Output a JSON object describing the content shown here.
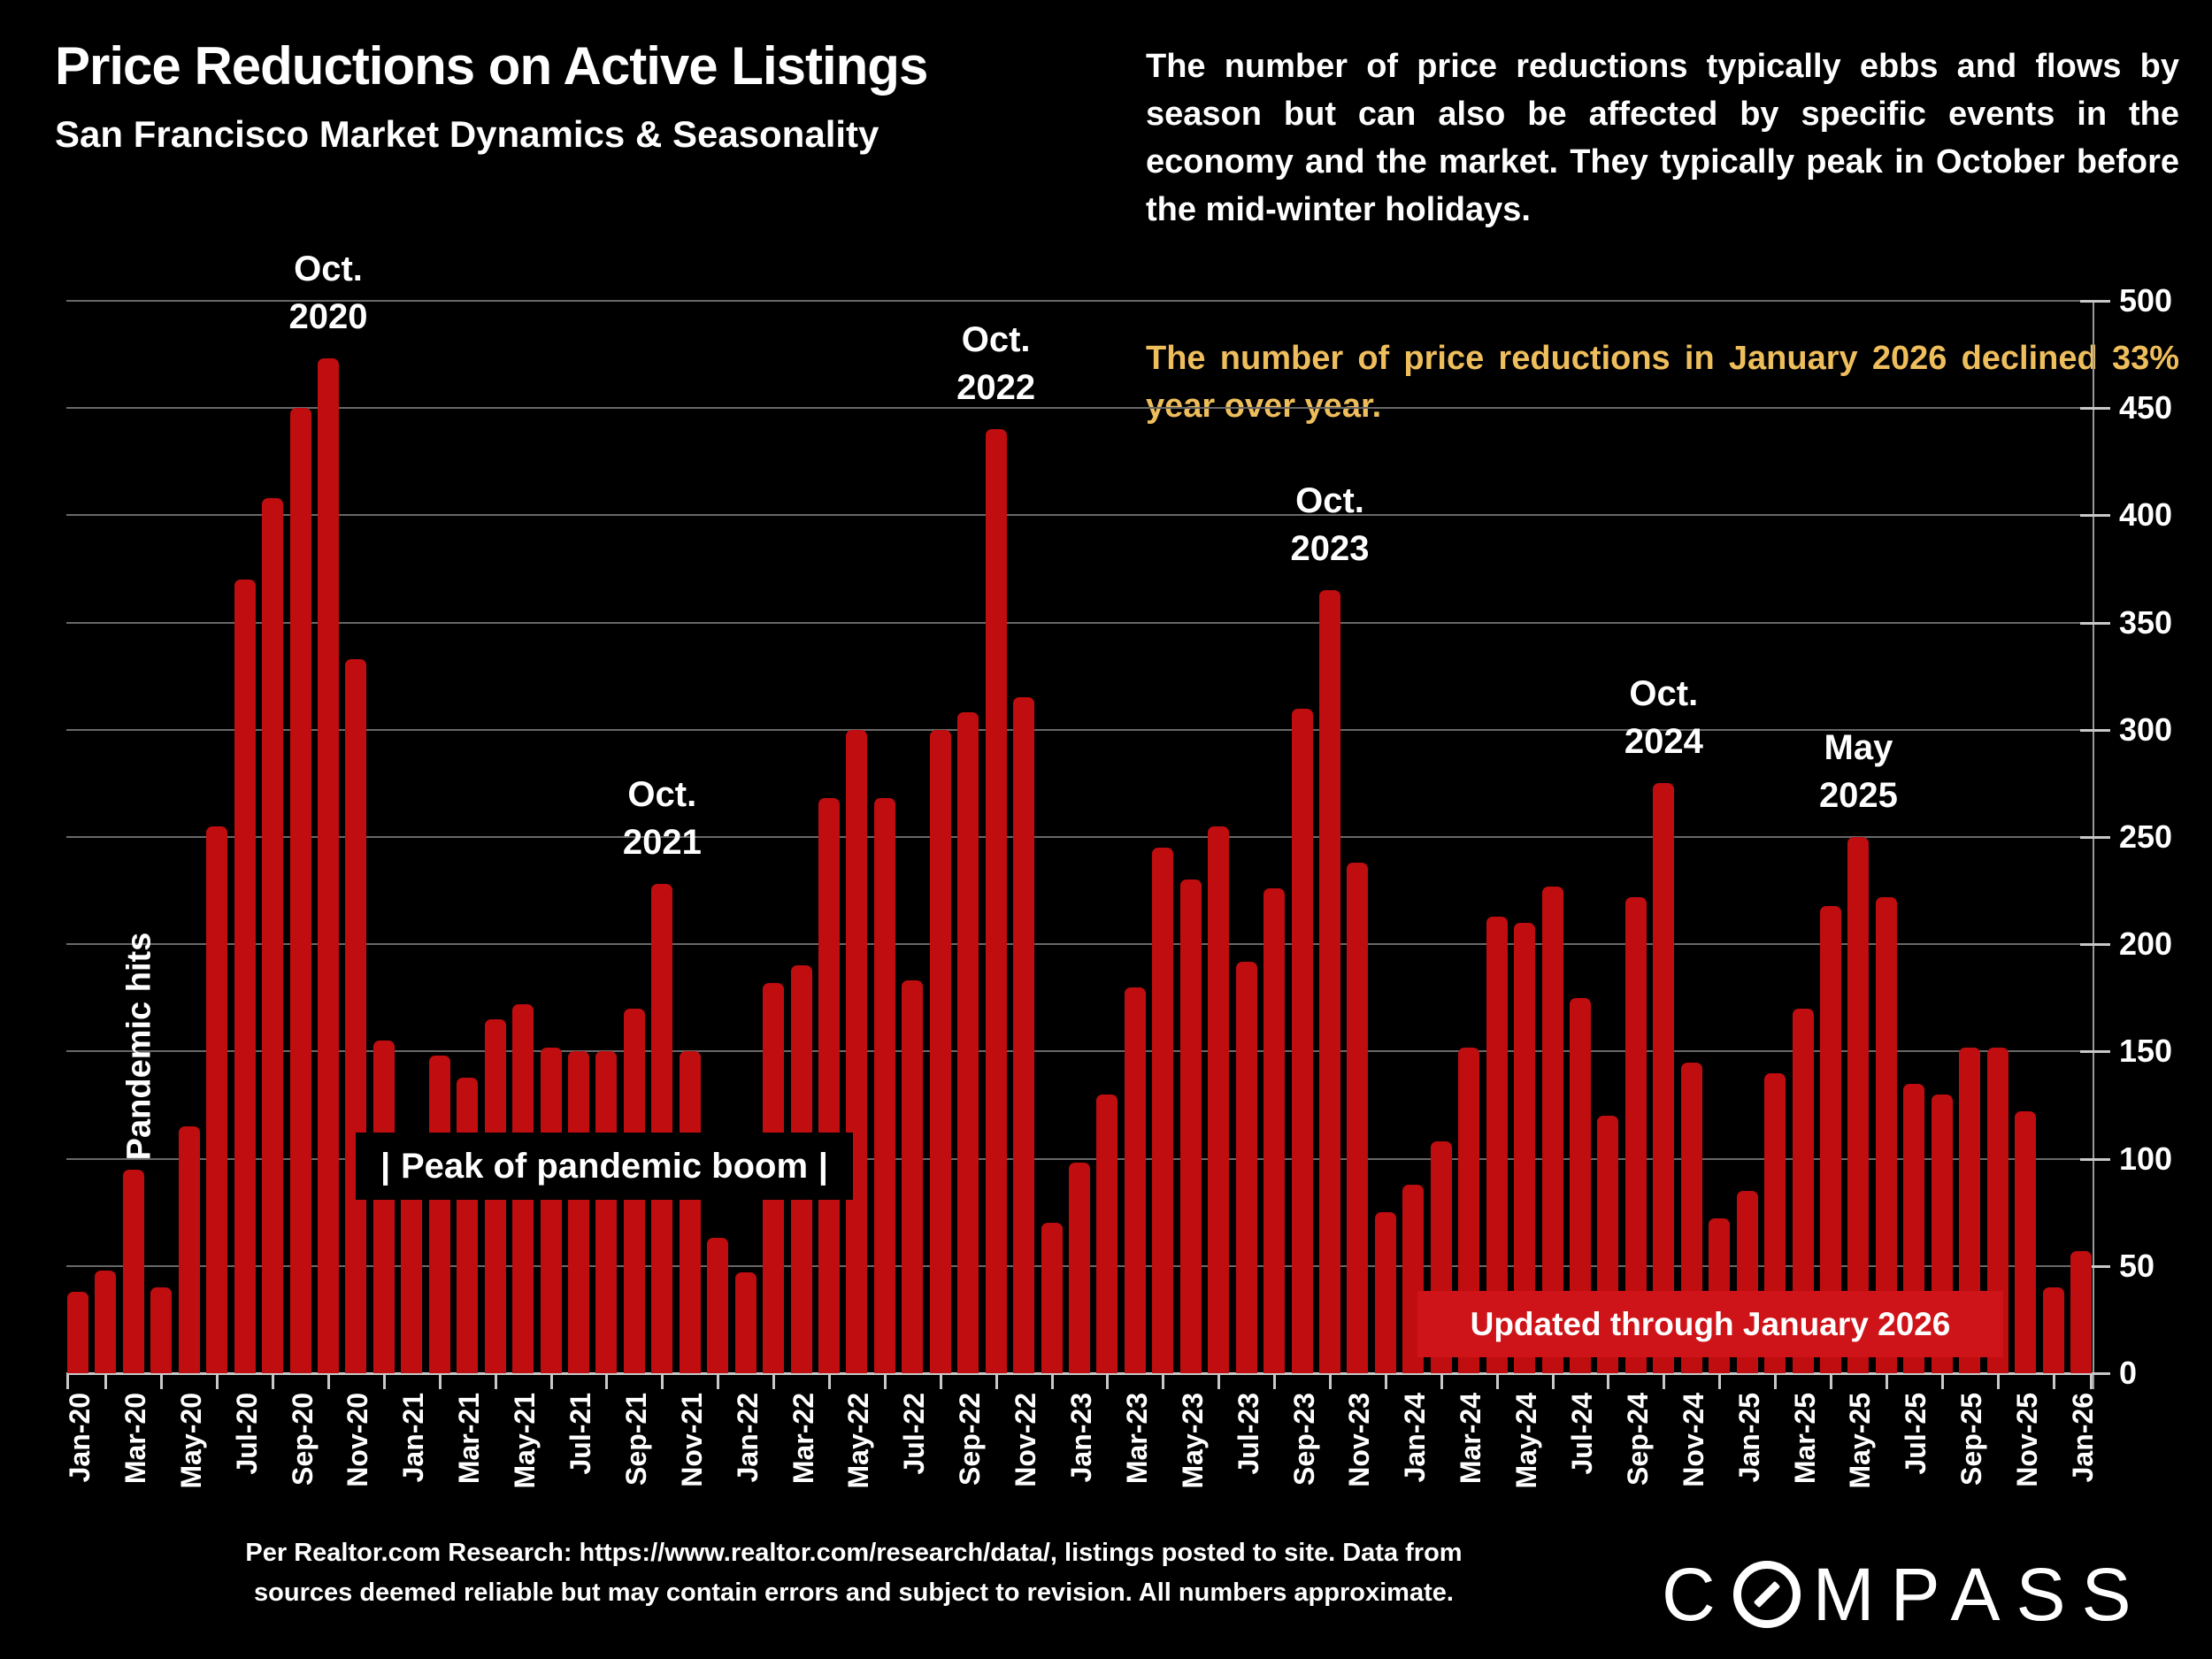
{
  "header": {
    "title": "Price Reductions on Active Listings",
    "subtitle": "San Francisco Market Dynamics & Seasonality"
  },
  "commentary": {
    "paragraph1": "The number of price reductions typically ebbs and flows by season but can also be affected by specific events in the economy and the market. They typically peak in October before the mid-winter holidays.",
    "paragraph2": "The number of price reductions in January 2026 declined 33% year over year.",
    "paragraph2_color": "#EFBE5C"
  },
  "overlays": {
    "pandemic_label": "Pandemic hits",
    "peak_box": {
      "left_pipe": "|",
      "text": "Peak of pandemic boom",
      "right_pipe": "|"
    },
    "updated_banner": "Updated through January 2026",
    "banner_color": "#CE1419"
  },
  "footer": {
    "source_line1": "Per Realtor.com Research:  https://www.realtor.com/research/data/, listings posted to site. Data from",
    "source_line2": "sources deemed reliable but may contain errors and subject to revision. All numbers approximate.",
    "logo_text_left": "C",
    "logo_text_right": "MPASS"
  },
  "chart_data": {
    "type": "bar",
    "title": "Price Reductions on Active Listings — San Francisco",
    "xlabel": "",
    "ylabel": "",
    "ylim": [
      0,
      500
    ],
    "ytick_step": 50,
    "grid": true,
    "legend": false,
    "bar_color": "#C00D10",
    "grid_color": "#686868",
    "axis_color": "#C8C8C8",
    "categories": [
      "Jan-20",
      "Feb-20",
      "Mar-20",
      "Apr-20",
      "May-20",
      "Jun-20",
      "Jul-20",
      "Aug-20",
      "Sep-20",
      "Oct-20",
      "Nov-20",
      "Dec-20",
      "Jan-21",
      "Feb-21",
      "Mar-21",
      "Apr-21",
      "May-21",
      "Jun-21",
      "Jul-21",
      "Aug-21",
      "Sep-21",
      "Oct-21",
      "Nov-21",
      "Dec-21",
      "Jan-22",
      "Feb-22",
      "Mar-22",
      "Apr-22",
      "May-22",
      "Jun-22",
      "Jul-22",
      "Aug-22",
      "Sep-22",
      "Oct-22",
      "Nov-22",
      "Dec-22",
      "Jan-23",
      "Feb-23",
      "Mar-23",
      "Apr-23",
      "May-23",
      "Jun-23",
      "Jul-23",
      "Aug-23",
      "Sep-23",
      "Oct-23",
      "Nov-23",
      "Dec-23",
      "Jan-24",
      "Feb-24",
      "Mar-24",
      "Apr-24",
      "May-24",
      "Jun-24",
      "Jul-24",
      "Aug-24",
      "Sep-24",
      "Oct-24",
      "Nov-24",
      "Dec-24",
      "Jan-25",
      "Feb-25",
      "Mar-25",
      "Apr-25",
      "May-25",
      "Jun-25",
      "Jul-25",
      "Aug-25",
      "Sep-25",
      "Oct-25",
      "Nov-25",
      "Dec-25",
      "Jan-26"
    ],
    "values": [
      38,
      48,
      95,
      40,
      115,
      255,
      370,
      408,
      450,
      473,
      333,
      155,
      112,
      148,
      138,
      165,
      172,
      152,
      150,
      150,
      170,
      228,
      150,
      63,
      47,
      182,
      190,
      268,
      300,
      268,
      183,
      300,
      308,
      440,
      315,
      70,
      98,
      130,
      180,
      245,
      230,
      255,
      192,
      226,
      310,
      365,
      238,
      75,
      88,
      108,
      152,
      213,
      210,
      227,
      175,
      120,
      222,
      275,
      145,
      72,
      85,
      140,
      170,
      218,
      250,
      222,
      135,
      130,
      152,
      152,
      122,
      40,
      57
    ],
    "x_tick_labels": [
      "Jan-20",
      "Mar-20",
      "May-20",
      "Jul-20",
      "Sep-20",
      "Nov-20",
      "Jan-21",
      "Mar-21",
      "May-21",
      "Jul-21",
      "Sep-21",
      "Nov-21",
      "Jan-22",
      "Mar-22",
      "May-22",
      "Jul-22",
      "Sep-22",
      "Nov-22",
      "Jan-23",
      "Mar-23",
      "May-23",
      "Jul-23",
      "Sep-23",
      "Nov-23",
      "Jan-24",
      "Mar-24",
      "May-24",
      "Jul-24",
      "Sep-24",
      "Nov-24",
      "Jan-25",
      "Mar-25",
      "May-25",
      "Jul-25",
      "Sep-25",
      "Nov-25",
      "Jan-26"
    ],
    "y_tick_labels": [
      "0",
      "50",
      "100",
      "150",
      "200",
      "250",
      "300",
      "350",
      "400",
      "450",
      "500"
    ],
    "annotations": [
      {
        "line1": "Oct.",
        "line2": "2020",
        "index": 9
      },
      {
        "line1": "Oct.",
        "line2": "2021",
        "index": 21
      },
      {
        "line1": "Oct.",
        "line2": "2022",
        "index": 33
      },
      {
        "line1": "Oct.",
        "line2": "2023",
        "index": 45
      },
      {
        "line1": "Oct.",
        "line2": "2024",
        "index": 57
      },
      {
        "line1": "May",
        "line2": "2025",
        "index": 64
      }
    ]
  }
}
